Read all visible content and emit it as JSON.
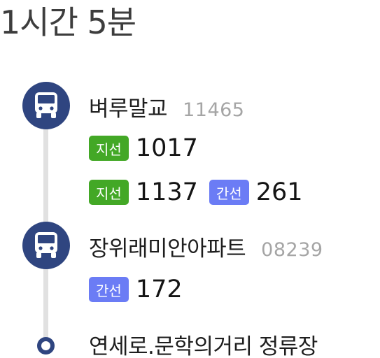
{
  "header": {
    "duration": "1시간 5분"
  },
  "stops": [
    {
      "name": "벼루말교",
      "id": "11465",
      "routes": [
        [
          {
            "type": "지선",
            "number": "1017"
          }
        ],
        [
          {
            "type": "지선",
            "number": "1137"
          },
          {
            "type": "간선",
            "number": "261"
          }
        ]
      ]
    },
    {
      "name": "장위래미안아파트",
      "id": "08239",
      "routes": [
        [
          {
            "type": "간선",
            "number": "172"
          }
        ]
      ]
    },
    {
      "name": "연세로.문학의거리 정류장"
    }
  ],
  "icons": {
    "stop_icon": "bus-icon",
    "end_icon": "destination-dot-icon"
  },
  "colors": {
    "badge_navy": "#2f4580",
    "branch_green": "#43a826",
    "trunk_blue": "#6b7cf5",
    "stop_id_gray": "#a5a5a5",
    "track_gray": "#e1e1e1"
  }
}
